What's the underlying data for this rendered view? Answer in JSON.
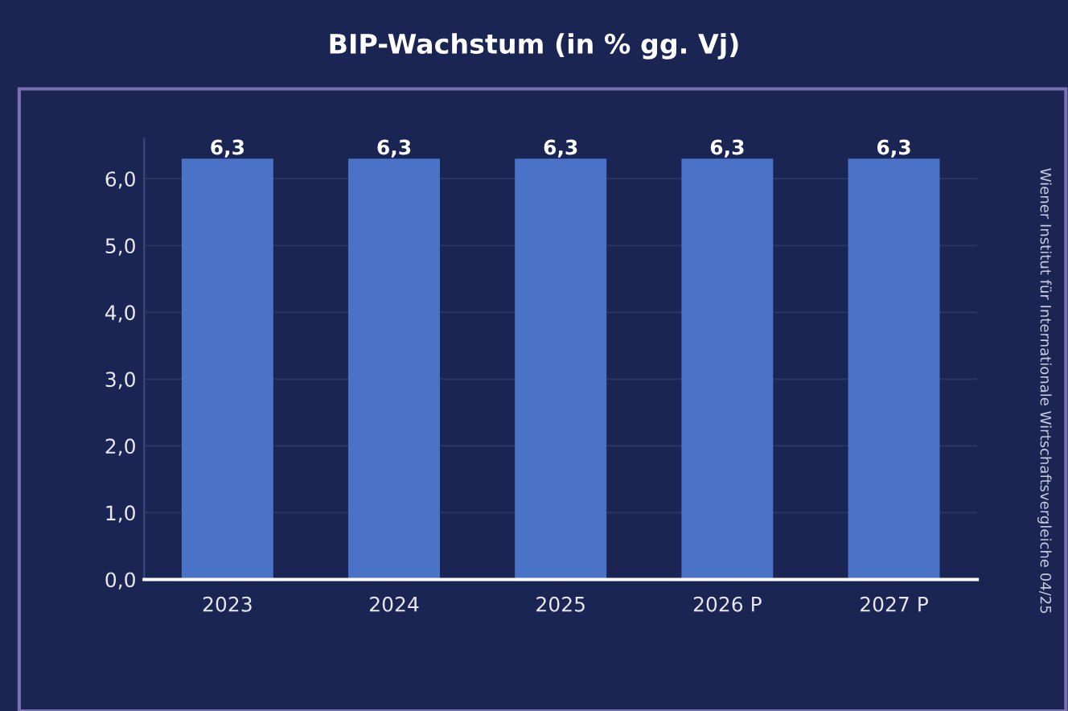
{
  "chart_data": {
    "type": "bar",
    "title": "BIP-Wachstum (in % gg. Vj)",
    "categories": [
      "2023",
      "2024",
      "2025",
      "2026 P",
      "2027 P"
    ],
    "values": [
      6.3,
      6.3,
      6.3,
      6.3,
      6.3
    ],
    "color": "#4a73c8",
    "value_labels": [
      "6,3",
      "6,3",
      "6,3",
      "6,3",
      "6,3"
    ],
    "yticks": [
      {
        "value": 0,
        "label": "0,0"
      },
      {
        "value": 1,
        "label": "1,0"
      },
      {
        "value": 2,
        "label": "2,0"
      },
      {
        "value": 3,
        "label": "3,0"
      },
      {
        "value": 4,
        "label": "4,0"
      },
      {
        "value": 5,
        "label": "5,0"
      },
      {
        "value": 6,
        "label": "6,0"
      }
    ],
    "ylim": [
      0,
      6.6
    ],
    "grid": "y",
    "annotations": [
      "Wiener Institut für Internationale Wirtschaftsvergleiche 04/25"
    ]
  }
}
